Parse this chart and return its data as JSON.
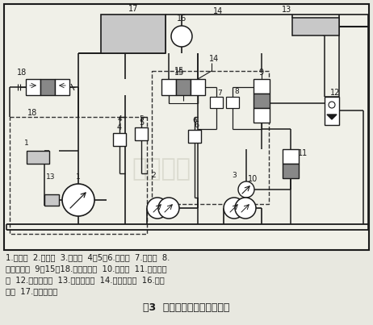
{
  "title": "图3  凿岩机新型液压控制系统",
  "caption_line1": "1.推进泻  2.回转泻  3.冲击泻  4、5、6.溢流阀  7.节流阀  8.",
  "caption_line2": "遥控减压鄀  9、15、18.手动换向鄀  10.先导鄀  11.液动换向",
  "caption_line3": "鄀  12.单向节流鄀  13.推进液压缸  14.高速开关鄀  16.回转",
  "caption_line4": "马达  17.液压凿岩机",
  "bg_color": "#e8e8e0",
  "diagram_bg": "#f0f0e8",
  "lc": "#1a1a1a",
  "dc": "#333333",
  "gray1": "#a0a0a0",
  "gray2": "#888888",
  "gray3": "#c8c8c8"
}
